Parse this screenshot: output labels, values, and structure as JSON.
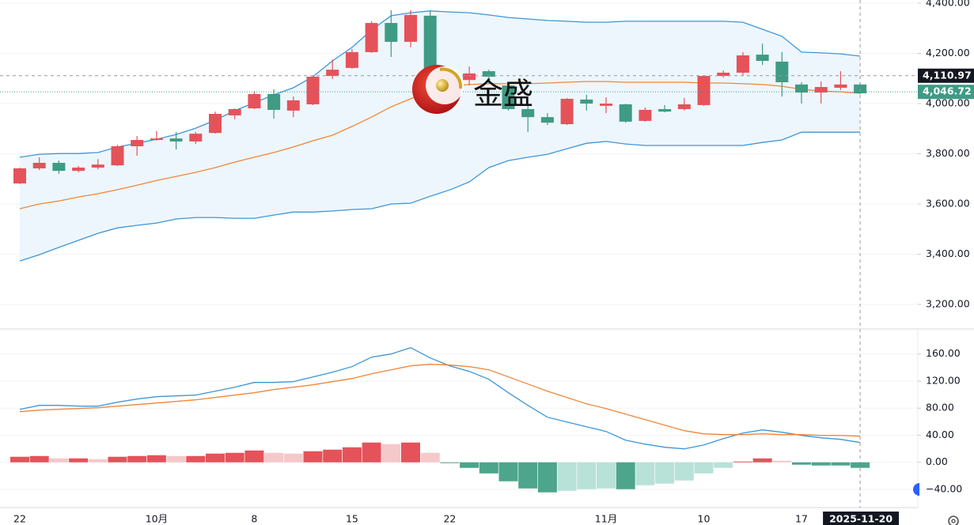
{
  "watermark": "金盛",
  "chart_data": [
    {
      "type": "candlestick",
      "categories": [
        "22",
        null,
        null,
        null,
        null,
        null,
        null,
        "10月",
        null,
        null,
        null,
        null,
        "8",
        null,
        null,
        null,
        null,
        "15",
        null,
        null,
        null,
        null,
        "22",
        null,
        null,
        null,
        null,
        null,
        null,
        null,
        "11月",
        null,
        null,
        null,
        null,
        "10",
        null,
        null,
        null,
        null,
        "17",
        null,
        null,
        null
      ],
      "open": [
        3682,
        3742,
        3764,
        3732,
        3745,
        3754,
        3830,
        3855,
        3861,
        3849,
        3883,
        3953,
        3981,
        4038,
        3972,
        3997,
        4110,
        4142,
        4205,
        4321,
        4246,
        4350,
        4120,
        4094,
        4129,
        4072,
        3978,
        3946,
        3918,
        4016,
        3991,
        3997,
        3931,
        3978,
        3978,
        3994,
        4110,
        4123,
        4195,
        4167,
        4076,
        4044,
        4063,
        4076
      ],
      "high": [
        3745,
        3786,
        3773,
        3751,
        3779,
        3836,
        3871,
        3890,
        3887,
        3887,
        3968,
        3981,
        4050,
        4057,
        4028,
        4110,
        4176,
        4217,
        4328,
        4372,
        4372,
        4369,
        4145,
        4148,
        4135,
        4082,
        4000,
        3962,
        4022,
        4035,
        4025,
        4000,
        3984,
        3994,
        4022,
        4113,
        4132,
        4205,
        4239,
        4205,
        4085,
        4088,
        4129,
        4085
      ],
      "low": [
        3679,
        3735,
        3720,
        3726,
        3738,
        3751,
        3792,
        3852,
        3817,
        3839,
        3880,
        3937,
        3978,
        3940,
        3946,
        3994,
        4098,
        4139,
        4202,
        4186,
        4224,
        4066,
        4082,
        4072,
        4079,
        3972,
        3887,
        3915,
        3915,
        3972,
        3962,
        3924,
        3928,
        3965,
        3972,
        3991,
        4104,
        4113,
        4154,
        4028,
        4000,
        4000,
        4054,
        4038
      ],
      "close": [
        3742,
        3764,
        3732,
        3745,
        3757,
        3830,
        3855,
        3861,
        3849,
        3880,
        3959,
        3978,
        4038,
        3975,
        4013,
        4107,
        4135,
        4205,
        4321,
        4246,
        4353,
        4082,
        4094,
        4120,
        4107,
        3978,
        3946,
        3924,
        4019,
        4000,
        4000,
        3928,
        3975,
        3968,
        3997,
        4110,
        4123,
        4192,
        4170,
        4085,
        4044,
        4066,
        4076,
        4041
      ],
      "up_color": "#e5525a",
      "down_color": "#3e9b84",
      "band_fill": "#eaf4fb",
      "series": [
        {
          "color": "#3d96d8",
          "values": [
            3786,
            3798,
            3801,
            3801,
            3805,
            3827,
            3842,
            3858,
            3877,
            3902,
            3934,
            3972,
            4003,
            4035,
            4063,
            4107,
            4170,
            4224,
            4293,
            4350,
            4362,
            4369,
            4365,
            4362,
            4353,
            4343,
            4337,
            4331,
            4328,
            4324,
            4324,
            4328,
            4328,
            4328,
            4328,
            4328,
            4328,
            4324,
            4296,
            4268,
            4205,
            4202,
            4198,
            4189
          ]
        },
        {
          "color": "#f0863a",
          "values": [
            3581,
            3600,
            3612,
            3628,
            3641,
            3657,
            3675,
            3694,
            3710,
            3726,
            3745,
            3767,
            3786,
            3805,
            3827,
            3852,
            3874,
            3909,
            3946,
            3987,
            4019,
            4053,
            4069,
            4076,
            4079,
            4079,
            4079,
            4082,
            4085,
            4088,
            4088,
            4085,
            4085,
            4085,
            4085,
            4082,
            4082,
            4079,
            4076,
            4069,
            4057,
            4050,
            4047,
            4041
          ]
        },
        {
          "color": "#3d96d8",
          "values": [
            3373,
            3398,
            3427,
            3455,
            3483,
            3505,
            3515,
            3524,
            3540,
            3546,
            3546,
            3543,
            3543,
            3556,
            3568,
            3568,
            3572,
            3578,
            3581,
            3600,
            3603,
            3631,
            3656,
            3688,
            3745,
            3773,
            3786,
            3798,
            3820,
            3842,
            3849,
            3839,
            3833,
            3833,
            3833,
            3833,
            3833,
            3833,
            3845,
            3855,
            3886,
            3886,
            3886,
            3886
          ]
        }
      ],
      "ylim": [
        3105.5,
        4412.6
      ],
      "yticks": [
        {
          "value": 3200,
          "label": "3,200.00"
        },
        {
          "value": 3400,
          "label": "3,400.00"
        },
        {
          "value": 3600,
          "label": "3,600.00"
        },
        {
          "value": 3800,
          "label": "3,800.00"
        },
        {
          "value": 4000,
          "label": "4,000.00"
        },
        {
          "value": 4200,
          "label": "4,200.00"
        },
        {
          "value": 4400,
          "label": "4,400.00"
        }
      ],
      "grid": true,
      "crosshair": {
        "x_label": "2025-11-20",
        "y": {
          "value": 4110.97,
          "label": "4,110.97"
        }
      },
      "last_price": {
        "value": 4046.72,
        "label": "4,046.72",
        "color": "#3e9b84"
      }
    },
    {
      "type": "macd",
      "series": [
        {
          "color": "#3d96d8",
          "values": [
            78.3,
            84.1,
            84.1,
            82.9,
            82.9,
            88.8,
            93.5,
            97.0,
            98.1,
            99.3,
            105.1,
            111.0,
            118.0,
            118.0,
            119.2,
            126.2,
            133.2,
            141.4,
            155.4,
            160.0,
            169.4,
            154.2,
            142.5,
            134.3,
            122.7,
            102.8,
            84.1,
            66.6,
            59.6,
            52.6,
            45.6,
            32.7,
            26.9,
            22.2,
            19.9,
            25.7,
            35.0,
            43.2,
            47.9,
            44.4,
            39.7,
            36.2,
            33.9,
            29.2
          ]
        },
        {
          "color": "#f0863a",
          "values": [
            74.8,
            77.1,
            78.3,
            79.4,
            80.6,
            82.9,
            85.3,
            87.6,
            90.0,
            92.3,
            95.8,
            99.3,
            102.8,
            107.5,
            111.0,
            114.5,
            119.2,
            123.8,
            130.8,
            136.7,
            142.5,
            144.9,
            143.7,
            141.4,
            136.7,
            126.2,
            115.7,
            105.1,
            95.8,
            86.4,
            79.4,
            71.3,
            63.1,
            54.9,
            46.7,
            42.1,
            40.9,
            40.9,
            42.1,
            40.9,
            40.9,
            39.7,
            39.7,
            38.6
          ]
        }
      ],
      "histogram": {
        "values": [
          8.2,
          9.3,
          5.8,
          5.8,
          4.7,
          8.2,
          9.3,
          10.5,
          9.3,
          9.3,
          12.9,
          14.0,
          17.5,
          14.0,
          12.9,
          16.4,
          18.7,
          22.2,
          29.2,
          26.9,
          29.2,
          14.0,
          -1.2,
          -8.2,
          -16.4,
          -28.0,
          -38.6,
          -44.4,
          -42.1,
          -39.7,
          -38.6,
          -39.7,
          -33.9,
          -31.5,
          -26.9,
          -16.4,
          -8.2,
          1.2,
          5.8,
          2.3,
          -3.5,
          -4.7,
          -4.7,
          -8.2
        ],
        "colors": {
          "pos_up": "#e5525a",
          "pos_down": "#f5c8ca",
          "neg_down": "#4da58c",
          "neg_up": "#b8e2d7"
        }
      },
      "ylim": [
        -66.9,
        195.9
      ],
      "yticks": [
        {
          "value": -40,
          "label": "−40.00"
        },
        {
          "value": 0,
          "label": "0.00"
        },
        {
          "value": 40,
          "label": "40.00"
        },
        {
          "value": 80,
          "label": "80.00"
        },
        {
          "value": 120,
          "label": "120.00"
        },
        {
          "value": 160,
          "label": "160.00"
        }
      ],
      "grid": true
    }
  ]
}
